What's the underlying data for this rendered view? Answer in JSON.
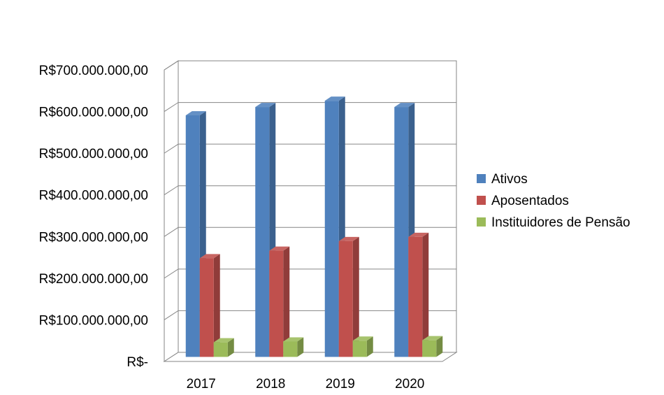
{
  "chart_data": {
    "type": "bar",
    "title": "",
    "xlabel": "",
    "ylabel": "",
    "categories": [
      "2017",
      "2018",
      "2019",
      "2020"
    ],
    "series": [
      {
        "name": "Ativos",
        "values": [
          580000000,
          600000000,
          615000000,
          600000000
        ],
        "color": "#4F81BD"
      },
      {
        "name": "Aposentados",
        "values": [
          237000000,
          255000000,
          278000000,
          288000000
        ],
        "color": "#C0504D"
      },
      {
        "name": "Instituidores de Pensão",
        "values": [
          35000000,
          37000000,
          39000000,
          40000000
        ],
        "color": "#9BBB59"
      }
    ],
    "ylim": [
      0,
      700000000
    ],
    "yticks": [
      0,
      100000000,
      200000000,
      300000000,
      400000000,
      500000000,
      600000000,
      700000000
    ],
    "ytick_labels": [
      "R$-",
      "R$100.000.000,00",
      "R$200.000.000,00",
      "R$300.000.000,00",
      "R$400.000.000,00",
      "R$500.000.000,00",
      "R$600.000.000,00",
      "R$700.000.000,00"
    ],
    "grid": true,
    "style": "3d-clustered-column",
    "legend_position": "right"
  }
}
